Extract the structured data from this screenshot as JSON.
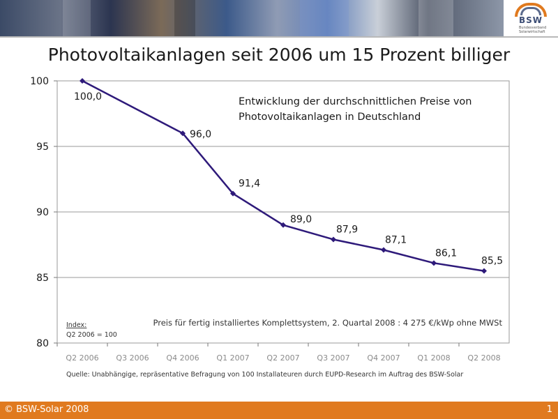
{
  "slide": {
    "title": "Photovoltaikanlagen seit 2006 um 15 Prozent billiger",
    "logo": {
      "name": "BSW",
      "subtitle": "Bundesverband Solarwirtschaft"
    },
    "footer": {
      "copyright": "© BSW-Solar 2008",
      "page_number": "1"
    },
    "accent_color": "#e07a1f"
  },
  "chart_data": {
    "type": "line",
    "categories": [
      "Q2 2006",
      "Q3 2006",
      "Q4 2006",
      "Q1 2007",
      "Q2 2007",
      "Q3 2007",
      "Q4 2007",
      "Q1 2008",
      "Q2 2008"
    ],
    "points": [
      {
        "category": "Q2 2006",
        "value": 100.0,
        "label": "100,0"
      },
      {
        "category": "Q4 2006",
        "value": 96.0,
        "label": "96,0"
      },
      {
        "category": "Q1 2007",
        "value": 91.4,
        "label": "91,4"
      },
      {
        "category": "Q2 2007",
        "value": 89.0,
        "label": "89,0"
      },
      {
        "category": "Q3 2007",
        "value": 87.9,
        "label": "87,9"
      },
      {
        "category": "Q4 2007",
        "value": 87.1,
        "label": "87,1"
      },
      {
        "category": "Q1 2008",
        "value": 86.1,
        "label": "86,1"
      },
      {
        "category": "Q2 2008",
        "value": 85.5,
        "label": "85,5"
      }
    ],
    "ylim": [
      80,
      100
    ],
    "yticks": [
      80,
      85,
      90,
      95,
      100
    ],
    "grid": true,
    "line_color": "#2e1a7a",
    "annotation_title": [
      "Entwicklung der durchschnittlichen Preise von",
      "Photovoltaikanlagen in Deutschland"
    ],
    "note": "Preis für fertig installiertes Komplettsystem, 2. Quartal 2008 : 4 275 €/kWp ohne MWSt",
    "index_label": "Index:",
    "index_value": "Q2 2006 = 100",
    "source": "Quelle: Unabhängige, repräsentative Befragung von 100 Installateuren durch EUPD-Research im Auftrag des BSW-Solar"
  }
}
